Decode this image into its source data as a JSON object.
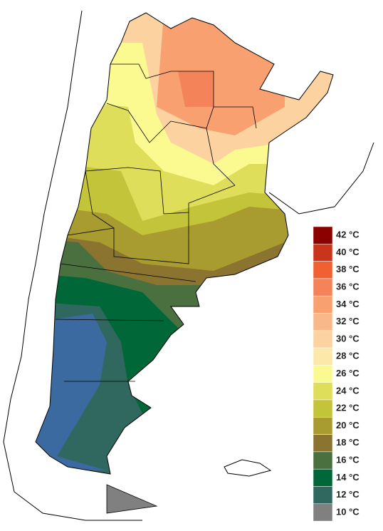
{
  "legend": {
    "items": [
      {
        "label": "42 °C",
        "color": "#8b0000"
      },
      {
        "label": "40 °C",
        "color": "#c8351a"
      },
      {
        "label": "38 °C",
        "color": "#f06030"
      },
      {
        "label": "36 °C",
        "color": "#f5835a"
      },
      {
        "label": "34 °C",
        "color": "#f8a070"
      },
      {
        "label": "32 °C",
        "color": "#f9b88a"
      },
      {
        "label": "30 °C",
        "color": "#fcd3a0"
      },
      {
        "label": "28 °C",
        "color": "#fce8a8"
      },
      {
        "label": "26 °C",
        "color": "#fafa90"
      },
      {
        "label": "24 °C",
        "color": "#dede5a"
      },
      {
        "label": "22 °C",
        "color": "#c4c43a"
      },
      {
        "label": "20 °C",
        "color": "#a89c30"
      },
      {
        "label": "18 °C",
        "color": "#8a7430"
      },
      {
        "label": "16 °C",
        "color": "#4a7040"
      },
      {
        "label": "14 °C",
        "color": "#006838"
      },
      {
        "label": "12 °C",
        "color": "#306860"
      },
      {
        "label": "10 °C",
        "color": "#808080"
      }
    ]
  }
}
